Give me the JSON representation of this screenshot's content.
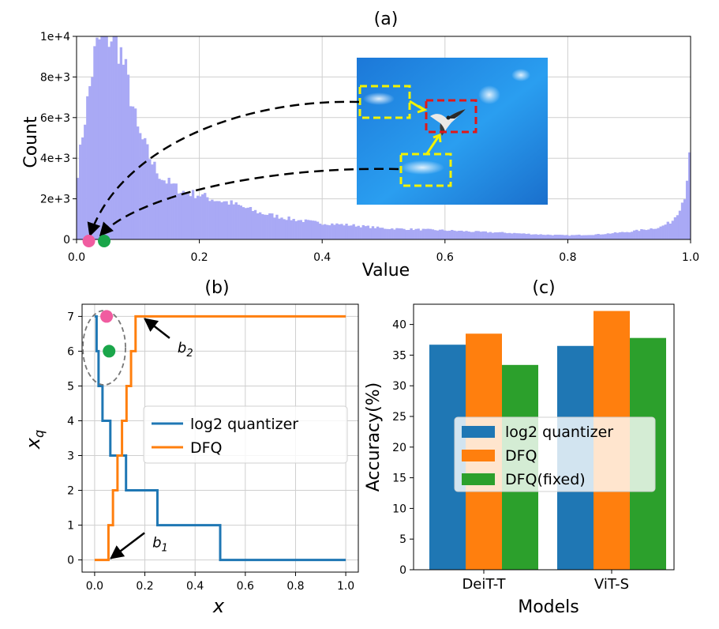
{
  "figure": {
    "panel_a_title": "(a)",
    "panel_b_title": "(b)",
    "panel_c_title": "(c)"
  },
  "colors": {
    "hist": "#a9a9f5",
    "log2": "#1f77b4",
    "dfq": "#ff7f0e",
    "dfq_fixed": "#2ca02c",
    "pink_marker": "#f05ca0",
    "green_marker": "#1aa64a",
    "sky": "#1c86e0",
    "box_yellow": "#f2f200",
    "box_red": "#e01818"
  },
  "chart_data": [
    {
      "type": "bar",
      "panel": "a",
      "title": "(a)",
      "xlabel": "Value",
      "ylabel": "Count",
      "xlim": [
        0,
        1
      ],
      "ylim": [
        0,
        10000
      ],
      "x_ticks": [
        "0.0",
        "0.2",
        "0.4",
        "0.6",
        "0.8",
        "1.0"
      ],
      "x_tick_values": [
        0,
        0.2,
        0.4,
        0.6,
        0.8,
        1.0
      ],
      "y_ticks": [
        "0",
        "2e+3",
        "4e+3",
        "6e+3",
        "8e+3",
        "1e+4"
      ],
      "y_tick_values": [
        0,
        2000,
        4000,
        6000,
        8000,
        10000
      ],
      "grid": true,
      "histogram_profile": {
        "x": [
          0.0,
          0.01,
          0.02,
          0.03,
          0.04,
          0.05,
          0.06,
          0.07,
          0.08,
          0.09,
          0.1,
          0.11,
          0.12,
          0.13,
          0.14,
          0.15,
          0.16,
          0.17,
          0.18,
          0.2,
          0.22,
          0.25,
          0.3,
          0.35,
          0.4,
          0.45,
          0.5,
          0.55,
          0.6,
          0.65,
          0.7,
          0.75,
          0.8,
          0.85,
          0.9,
          0.95,
          0.97,
          0.98,
          0.99,
          1.0
        ],
        "count": [
          2900,
          5300,
          7200,
          9200,
          10000,
          10000,
          10000,
          9400,
          8200,
          6800,
          5300,
          4700,
          4000,
          3400,
          3000,
          2800,
          2600,
          2400,
          2300,
          2200,
          2000,
          1800,
          1300,
          1000,
          800,
          700,
          550,
          500,
          450,
          380,
          330,
          250,
          200,
          250,
          380,
          600,
          900,
          1400,
          2100,
          4400
        ]
      },
      "markers": [
        {
          "name": "pink-marker",
          "x": 0.02,
          "y": 0
        },
        {
          "name": "green-marker",
          "x": 0.045,
          "y": 0
        }
      ]
    },
    {
      "type": "line",
      "panel": "b",
      "title": "(b)",
      "xlabel": "x",
      "ylabel": "x_q",
      "xlim": [
        -0.05,
        1.05
      ],
      "ylim": [
        -0.35,
        7.35
      ],
      "x_ticks": [
        "0.0",
        "0.2",
        "0.4",
        "0.6",
        "0.8",
        "1.0"
      ],
      "x_tick_values": [
        0,
        0.2,
        0.4,
        0.6,
        0.8,
        1.0
      ],
      "y_ticks": [
        "0",
        "1",
        "2",
        "3",
        "4",
        "5",
        "6",
        "7"
      ],
      "y_tick_values": [
        0,
        1,
        2,
        3,
        4,
        5,
        6,
        7
      ],
      "grid": true,
      "legend_position": "center-right",
      "series": [
        {
          "name": "log2 quantizer",
          "color_key": "log2",
          "x": [
            0,
            0.0078,
            0.0078,
            0.0156,
            0.0156,
            0.0313,
            0.0313,
            0.0625,
            0.0625,
            0.125,
            0.125,
            0.25,
            0.25,
            0.5,
            0.5,
            1.0
          ],
          "y": [
            7,
            7,
            6,
            6,
            5,
            5,
            4,
            4,
            3,
            3,
            2,
            2,
            1,
            1,
            0,
            0
          ]
        },
        {
          "name": "DFQ",
          "color_key": "dfq",
          "x": [
            0,
            0.055,
            0.055,
            0.073,
            0.073,
            0.091,
            0.091,
            0.109,
            0.109,
            0.127,
            0.127,
            0.145,
            0.145,
            0.163,
            0.163,
            1.0
          ],
          "y": [
            0,
            0,
            1,
            1,
            2,
            2,
            3,
            3,
            4,
            4,
            5,
            5,
            6,
            6,
            7,
            7
          ]
        }
      ],
      "markers": [
        {
          "name": "pink-marker",
          "x": 0.035,
          "y": 7
        },
        {
          "name": "green-marker",
          "x": 0.045,
          "y": 6
        }
      ],
      "annotations": [
        {
          "text": "b",
          "sub": "2",
          "arrow_to": [
            0.19,
            7.0
          ],
          "text_at": [
            0.33,
            6.15
          ]
        },
        {
          "text": "b",
          "sub": "1",
          "arrow_to": [
            0.055,
            0.0
          ],
          "text_at": [
            0.23,
            0.55
          ]
        }
      ]
    },
    {
      "type": "bar",
      "panel": "c",
      "title": "(c)",
      "xlabel": "Models",
      "ylabel": "Accuracy(%)",
      "categories": [
        "DeiT-T",
        "ViT-S"
      ],
      "ylim": [
        0,
        43.3
      ],
      "y_ticks": [
        "0",
        "5",
        "10",
        "15",
        "20",
        "25",
        "30",
        "35",
        "40"
      ],
      "y_tick_values": [
        0,
        5,
        10,
        15,
        20,
        25,
        30,
        35,
        40
      ],
      "grid": false,
      "legend_position": "center",
      "series": [
        {
          "name": "log2 quantizer",
          "color_key": "log2",
          "values": [
            36.7,
            36.5
          ]
        },
        {
          "name": "DFQ",
          "color_key": "dfq",
          "values": [
            38.5,
            42.2
          ]
        },
        {
          "name": "DFQ(fixed)",
          "color_key": "dfq_fixed",
          "values": [
            33.4,
            37.8
          ]
        }
      ]
    }
  ]
}
